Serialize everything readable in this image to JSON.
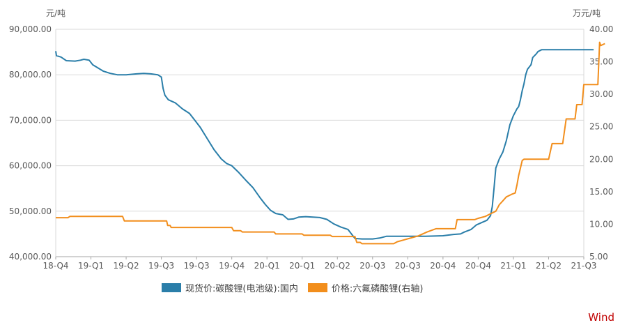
{
  "chart_data": {
    "type": "line",
    "left_unit": "元/吨",
    "right_unit": "万元/吨",
    "x_ticks": [
      "18-Q4",
      "19-Q1",
      "19-Q2",
      "19-Q3",
      "19-Q3",
      "19-Q4",
      "20-Q1",
      "20-Q1",
      "20-Q2",
      "20-Q3",
      "20-Q3",
      "20-Q4",
      "20-Q4",
      "21-Q1",
      "21-Q2",
      "21-Q3"
    ],
    "y_left_ticks": [
      "40,000.00",
      "50,000.00",
      "60,000.00",
      "70,000.00",
      "80,000.00",
      "90,000.00"
    ],
    "y_right_ticks": [
      "5.00",
      "10.00",
      "15.00",
      "20.00",
      "25.00",
      "30.00",
      "35.00",
      "40.00"
    ],
    "y_left_range": [
      40000,
      90000
    ],
    "y_right_range": [
      5,
      40
    ],
    "x_range_index": [
      0,
      15
    ],
    "grid": true,
    "legend_position": "bottom",
    "series": [
      {
        "name": "现货价:碳酸锂(电池级):国内",
        "axis": "left",
        "color": "#2a7ea9",
        "points": [
          [
            0.0,
            85200
          ],
          [
            0.02,
            84200
          ],
          [
            0.15,
            83900
          ],
          [
            0.3,
            83100
          ],
          [
            0.55,
            83000
          ],
          [
            0.7,
            83200
          ],
          [
            0.8,
            83400
          ],
          [
            0.95,
            83200
          ],
          [
            1.05,
            82200
          ],
          [
            1.2,
            81500
          ],
          [
            1.35,
            80800
          ],
          [
            1.55,
            80300
          ],
          [
            1.75,
            80000
          ],
          [
            2.0,
            80000
          ],
          [
            2.3,
            80200
          ],
          [
            2.5,
            80300
          ],
          [
            2.7,
            80200
          ],
          [
            2.9,
            80000
          ],
          [
            3.0,
            79500
          ],
          [
            3.05,
            77000
          ],
          [
            3.1,
            75500
          ],
          [
            3.2,
            74500
          ],
          [
            3.4,
            73800
          ],
          [
            3.6,
            72500
          ],
          [
            3.8,
            71500
          ],
          [
            3.95,
            70000
          ],
          [
            4.1,
            68500
          ],
          [
            4.3,
            66000
          ],
          [
            4.5,
            63500
          ],
          [
            4.7,
            61500
          ],
          [
            4.85,
            60500
          ],
          [
            5.0,
            60000
          ],
          [
            5.2,
            58500
          ],
          [
            5.4,
            56800
          ],
          [
            5.6,
            55200
          ],
          [
            5.8,
            53000
          ],
          [
            5.95,
            51500
          ],
          [
            6.1,
            50200
          ],
          [
            6.25,
            49500
          ],
          [
            6.45,
            49200
          ],
          [
            6.6,
            48200
          ],
          [
            6.75,
            48300
          ],
          [
            6.9,
            48700
          ],
          [
            7.1,
            48800
          ],
          [
            7.3,
            48700
          ],
          [
            7.5,
            48600
          ],
          [
            7.7,
            48200
          ],
          [
            7.9,
            47200
          ],
          [
            8.1,
            46500
          ],
          [
            8.3,
            46000
          ],
          [
            8.5,
            44000
          ],
          [
            8.7,
            43900
          ],
          [
            9.0,
            43900
          ],
          [
            9.2,
            44100
          ],
          [
            9.4,
            44500
          ],
          [
            9.6,
            44500
          ],
          [
            9.8,
            44500
          ],
          [
            10.0,
            44500
          ],
          [
            10.5,
            44500
          ],
          [
            11.0,
            44600
          ],
          [
            11.3,
            44900
          ],
          [
            11.5,
            45000
          ],
          [
            11.6,
            45400
          ],
          [
            11.8,
            46000
          ],
          [
            11.95,
            47000
          ],
          [
            12.1,
            47500
          ],
          [
            12.25,
            48000
          ],
          [
            12.35,
            49000
          ],
          [
            12.4,
            51000
          ],
          [
            12.45,
            55000
          ],
          [
            12.5,
            59500
          ],
          [
            12.6,
            61500
          ],
          [
            12.7,
            63000
          ],
          [
            12.8,
            65500
          ],
          [
            12.9,
            69000
          ],
          [
            13.0,
            71000
          ],
          [
            13.1,
            72500
          ],
          [
            13.15,
            73000
          ],
          [
            13.2,
            74500
          ],
          [
            13.25,
            76500
          ],
          [
            13.3,
            78000
          ],
          [
            13.35,
            80000
          ],
          [
            13.4,
            81200
          ],
          [
            13.5,
            82200
          ],
          [
            13.55,
            83800
          ],
          [
            13.65,
            84600
          ],
          [
            13.7,
            85100
          ],
          [
            13.8,
            85500
          ],
          [
            14.0,
            85500
          ],
          [
            14.5,
            85500
          ],
          [
            15.0,
            85500
          ],
          [
            15.28,
            85500
          ]
        ]
      },
      {
        "name": "价格:六氟磷酸锂(右轴)",
        "axis": "right",
        "color": "#f28e1c",
        "points": [
          [
            0.0,
            11.0
          ],
          [
            0.35,
            11.0
          ],
          [
            0.4,
            11.2
          ],
          [
            1.0,
            11.2
          ],
          [
            1.9,
            11.2
          ],
          [
            1.95,
            10.5
          ],
          [
            2.5,
            10.5
          ],
          [
            3.15,
            10.5
          ],
          [
            3.18,
            9.8
          ],
          [
            3.25,
            9.8
          ],
          [
            3.28,
            9.5
          ],
          [
            4.5,
            9.5
          ],
          [
            5.0,
            9.5
          ],
          [
            5.05,
            9.0
          ],
          [
            5.25,
            9.0
          ],
          [
            5.3,
            8.8
          ],
          [
            6.0,
            8.8
          ],
          [
            6.2,
            8.8
          ],
          [
            6.25,
            8.5
          ],
          [
            7.0,
            8.5
          ],
          [
            7.05,
            8.3
          ],
          [
            7.8,
            8.3
          ],
          [
            7.85,
            8.1
          ],
          [
            8.5,
            8.1
          ],
          [
            8.55,
            7.2
          ],
          [
            8.65,
            7.2
          ],
          [
            8.7,
            7.0
          ],
          [
            9.6,
            7.0
          ],
          [
            9.7,
            7.3
          ],
          [
            9.9,
            7.6
          ],
          [
            10.1,
            7.9
          ],
          [
            10.3,
            8.2
          ],
          [
            10.55,
            8.8
          ],
          [
            10.8,
            9.3
          ],
          [
            11.0,
            9.3
          ],
          [
            11.1,
            9.3
          ],
          [
            11.35,
            9.3
          ],
          [
            11.4,
            10.7
          ],
          [
            11.9,
            10.7
          ],
          [
            12.0,
            10.9
          ],
          [
            12.2,
            11.2
          ],
          [
            12.35,
            11.6
          ],
          [
            12.5,
            12.0
          ],
          [
            12.6,
            13.0
          ],
          [
            12.7,
            13.6
          ],
          [
            12.8,
            14.2
          ],
          [
            12.95,
            14.6
          ],
          [
            13.05,
            14.8
          ],
          [
            13.1,
            16.0
          ],
          [
            13.15,
            17.5
          ],
          [
            13.25,
            19.8
          ],
          [
            13.3,
            20.0
          ],
          [
            13.6,
            20.0
          ],
          [
            14.0,
            20.0
          ],
          [
            14.1,
            22.4
          ],
          [
            14.4,
            22.4
          ],
          [
            14.5,
            26.2
          ],
          [
            14.75,
            26.2
          ],
          [
            14.8,
            28.4
          ],
          [
            14.95,
            28.4
          ],
          [
            15.0,
            31.5
          ],
          [
            15.3,
            31.5
          ],
          [
            15.4,
            31.5
          ],
          [
            15.45,
            38.0
          ],
          [
            15.48,
            37.5
          ],
          [
            15.6,
            37.8
          ]
        ]
      }
    ]
  },
  "legend": [
    "现货价:碳酸锂(电池级):国内",
    "价格:六氟磷酸锂(右轴)"
  ],
  "brand": "Wind"
}
